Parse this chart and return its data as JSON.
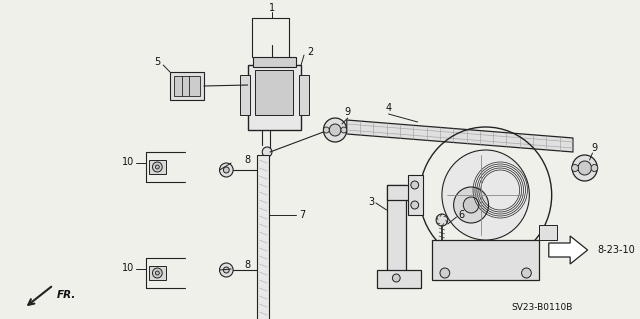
{
  "bg_color": "#f0f0eb",
  "line_color": "#222222",
  "text_color": "#111111",
  "ref_code": "SV23-B0110B",
  "date_code": "8-23-10",
  "fr_label": "FR."
}
